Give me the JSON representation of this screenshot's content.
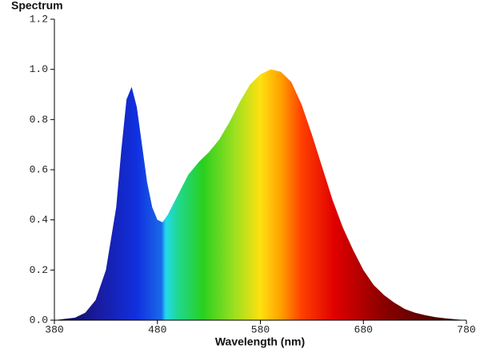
{
  "chart_data": {
    "type": "area",
    "title": "Spectrum",
    "x_label": "Wavelength (nm)",
    "x": [
      380,
      390,
      400,
      410,
      420,
      430,
      440,
      445,
      450,
      455,
      460,
      465,
      470,
      475,
      480,
      485,
      490,
      500,
      510,
      520,
      530,
      540,
      550,
      560,
      570,
      580,
      590,
      600,
      610,
      620,
      630,
      640,
      650,
      660,
      670,
      680,
      690,
      700,
      710,
      720,
      730,
      740,
      750,
      760,
      770,
      780
    ],
    "values": [
      0.0,
      0.005,
      0.01,
      0.03,
      0.08,
      0.2,
      0.45,
      0.68,
      0.88,
      0.93,
      0.85,
      0.7,
      0.55,
      0.45,
      0.4,
      0.39,
      0.42,
      0.5,
      0.58,
      0.63,
      0.67,
      0.72,
      0.79,
      0.87,
      0.94,
      0.98,
      1.0,
      0.99,
      0.95,
      0.86,
      0.74,
      0.61,
      0.48,
      0.37,
      0.28,
      0.2,
      0.14,
      0.1,
      0.07,
      0.045,
      0.03,
      0.02,
      0.012,
      0.007,
      0.003,
      0.0
    ],
    "xlim": [
      380,
      780
    ],
    "xticks": [
      380,
      480,
      580,
      680,
      780
    ],
    "ylim": [
      0,
      1.2
    ],
    "yticks": [
      {
        "value": 0,
        "label": "0.0"
      },
      0.2,
      0.4,
      0.6,
      0.8,
      {
        "value": 1,
        "label": "1.0"
      },
      1.2
    ]
  }
}
